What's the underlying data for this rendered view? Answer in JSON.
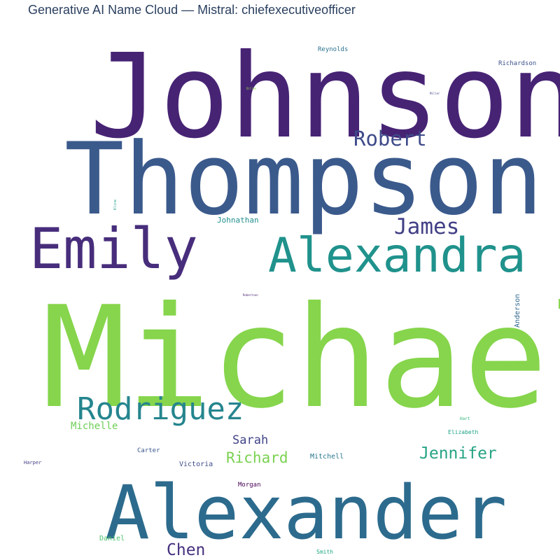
{
  "title": "Generative AI Name Cloud — Mistral: chiefexecutiveofficer",
  "words": [
    {
      "text": "Johnson",
      "color": "#472374"
    },
    {
      "text": "Thompson",
      "color": "#3b5a8c"
    },
    {
      "text": "Michael",
      "color": "#86d54c"
    },
    {
      "text": "Alexander",
      "color": "#2c6b8d"
    },
    {
      "text": "Emily",
      "color": "#472d7b"
    },
    {
      "text": "Alexandra",
      "color": "#20928c"
    },
    {
      "text": "Rodriguez",
      "color": "#25858e"
    },
    {
      "text": "Robert",
      "color": "#3e4a89"
    },
    {
      "text": "James",
      "color": "#424086"
    },
    {
      "text": "Jennifer",
      "color": "#26a384"
    },
    {
      "text": "Richard",
      "color": "#7ad151"
    },
    {
      "text": "Chen",
      "color": "#46307e"
    },
    {
      "text": "Sarah",
      "color": "#414487"
    },
    {
      "text": "Michelle",
      "color": "#6ece58"
    },
    {
      "text": "Johnathan",
      "color": "#218f8d"
    },
    {
      "text": "Reynolds",
      "color": "#2c728e"
    },
    {
      "text": "Richardson",
      "color": "#3b528b"
    },
    {
      "text": "Anderson",
      "color": "#31688e"
    },
    {
      "text": "Carter",
      "color": "#39568c"
    },
    {
      "text": "Victoria",
      "color": "#3e4c8a"
    },
    {
      "text": "Mitchell",
      "color": "#2a788e"
    },
    {
      "text": "Morgan",
      "color": "#440154"
    },
    {
      "text": "Harper",
      "color": "#433e85"
    },
    {
      "text": "Elizabeth",
      "color": "#1fa187"
    },
    {
      "text": "Hart",
      "color": "#35b779"
    },
    {
      "text": "Daniel",
      "color": "#4ac16d"
    },
    {
      "text": "Smith",
      "color": "#22a884"
    },
    {
      "text": "Dillon",
      "color": "#90d743"
    },
    {
      "text": "Miller",
      "color": "#3f4788"
    },
    {
      "text": "Kline",
      "color": "#1f9e89"
    },
    {
      "text": "Robertson",
      "color": "#482475"
    }
  ]
}
